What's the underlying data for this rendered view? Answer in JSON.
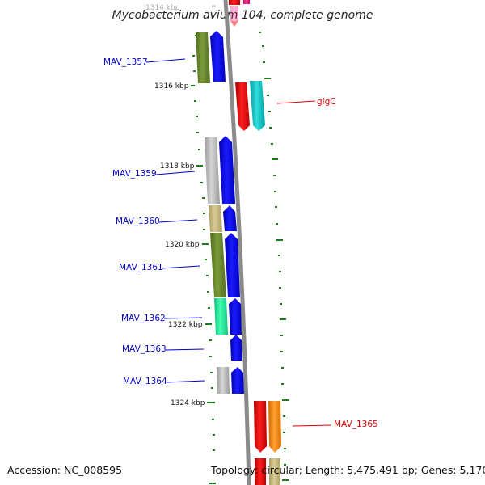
{
  "header": {
    "title": "Mycobacterium avium 104, complete genome"
  },
  "footer": {
    "accession": "Accession: NC_008595",
    "topology": "Topology: circular; Length: 5,475,491 bp; Genes: 5,170"
  },
  "scale_labels": [
    "1314 kbp",
    "1316 kbp",
    "1318 kbp",
    "1320 kbp",
    "1322 kbp",
    "1324 kbp"
  ],
  "gene_labels": [
    "MAV_1357",
    "glgC",
    "MAV_1359",
    "MAV_1360",
    "MAV_1361",
    "MAV_1362",
    "MAV_1363",
    "MAV_1364",
    "MAV_1365"
  ],
  "colors": {
    "backbone": "#888888",
    "cds": "#0000ee",
    "tick": "#1a7a1a",
    "label_blue": "#0000cc",
    "label_red": "#dd0000"
  }
}
